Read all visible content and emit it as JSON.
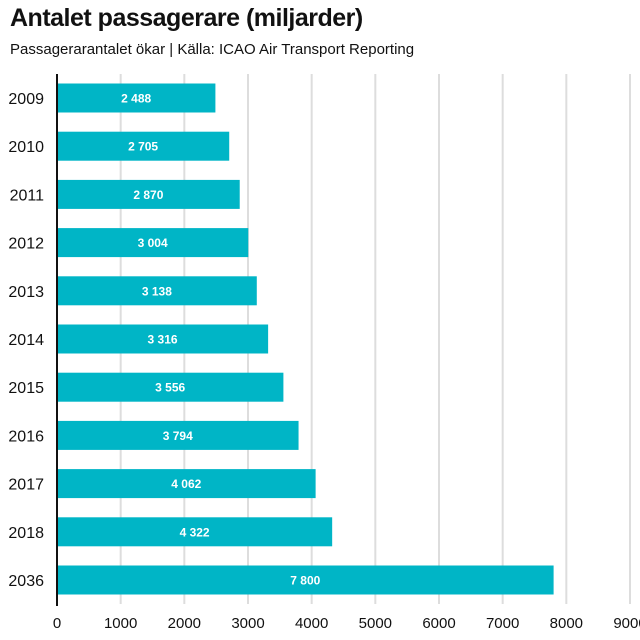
{
  "title": "Antalet passagerare (miljarder)",
  "subtitle": "Passagerarantalet ökar | Källa: ICAO Air Transport Reporting",
  "colors": {
    "bar": "#00b5c6",
    "grid": "#dddddd",
    "axis": "#111111",
    "label": "#ffffff"
  },
  "chart_data": {
    "type": "bar",
    "orientation": "horizontal",
    "categories": [
      "2009",
      "2010",
      "2011",
      "2012",
      "2013",
      "2014",
      "2015",
      "2016",
      "2017",
      "2018",
      "2036"
    ],
    "values": [
      2488,
      2705,
      2870,
      3004,
      3138,
      3316,
      3556,
      3794,
      4062,
      4322,
      7800
    ],
    "data_labels": [
      "2 488",
      "2 705",
      "2 870",
      "3 004",
      "3 138",
      "3 316",
      "3 556",
      "3 794",
      "4 062",
      "4 322",
      "7 800"
    ],
    "title": "Antalet passagerare (miljarder)",
    "xlabel": "",
    "ylabel": "",
    "xlim": [
      0,
      9000
    ],
    "xticks": [
      0,
      1000,
      2000,
      3000,
      4000,
      5000,
      6000,
      7000,
      8000,
      9000
    ],
    "grid": "vertical",
    "legend": "none"
  }
}
